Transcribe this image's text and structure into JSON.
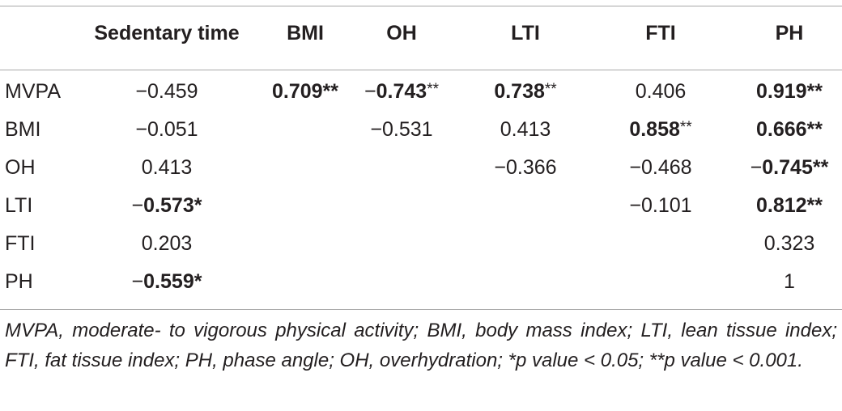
{
  "table": {
    "headers": [
      "",
      "Sedentary time",
      "BMI",
      "OH",
      "LTI",
      "FTI",
      "PH"
    ],
    "rows": [
      {
        "label": "MVPA",
        "cells": [
          {
            "col": 1,
            "sign": "−",
            "value": "0.459",
            "bold": false,
            "stars": ""
          },
          {
            "col": 2,
            "sign": "",
            "value": "0.709**",
            "bold": true,
            "stars": ""
          },
          {
            "col": 3,
            "sign": "−",
            "value": "0.743",
            "bold": true,
            "stars": "**"
          },
          {
            "col": 4,
            "sign": "",
            "value": "0.738",
            "bold": true,
            "stars": "**"
          },
          {
            "col": 5,
            "sign": "",
            "value": "0.406",
            "bold": false,
            "stars": ""
          },
          {
            "col": 6,
            "sign": "",
            "value": "0.919**",
            "bold": true,
            "stars": ""
          }
        ]
      },
      {
        "label": "BMI",
        "cells": [
          {
            "col": 1,
            "sign": "−",
            "value": "0.051",
            "bold": false,
            "stars": ""
          },
          {
            "col": 3,
            "sign": "−",
            "value": "0.531",
            "bold": false,
            "stars": ""
          },
          {
            "col": 4,
            "sign": "",
            "value": "0.413",
            "bold": false,
            "stars": ""
          },
          {
            "col": 5,
            "sign": "",
            "value": "0.858",
            "bold": true,
            "stars": "**"
          },
          {
            "col": 6,
            "sign": "",
            "value": "0.666**",
            "bold": true,
            "stars": ""
          }
        ]
      },
      {
        "label": "OH",
        "cells": [
          {
            "col": 1,
            "sign": "",
            "value": "0.413",
            "bold": false,
            "stars": ""
          },
          {
            "col": 4,
            "sign": "−",
            "value": "0.366",
            "bold": false,
            "stars": ""
          },
          {
            "col": 5,
            "sign": "−",
            "value": "0.468",
            "bold": false,
            "stars": ""
          },
          {
            "col": 6,
            "sign": "−",
            "value": "0.745**",
            "bold": true,
            "stars": ""
          }
        ]
      },
      {
        "label": "LTI",
        "cells": [
          {
            "col": 1,
            "sign": "−",
            "value": "0.573*",
            "bold": true,
            "stars": ""
          },
          {
            "col": 5,
            "sign": "−",
            "value": "0.101",
            "bold": false,
            "stars": ""
          },
          {
            "col": 6,
            "sign": "",
            "value": "0.812**",
            "bold": true,
            "stars": ""
          }
        ]
      },
      {
        "label": "FTI",
        "cells": [
          {
            "col": 1,
            "sign": "",
            "value": "0.203",
            "bold": false,
            "stars": ""
          },
          {
            "col": 6,
            "sign": "",
            "value": "0.323",
            "bold": false,
            "stars": ""
          }
        ]
      },
      {
        "label": "PH",
        "cells": [
          {
            "col": 1,
            "sign": "−",
            "value": "0.559*",
            "bold": true,
            "stars": ""
          },
          {
            "col": 6,
            "sign": "",
            "value": "1",
            "bold": false,
            "stars": ""
          }
        ]
      }
    ]
  },
  "footnote": "MVPA, moderate- to vigorous physical activity; BMI, body mass index; LTI, lean tissue index; FTI, fat tissue index; PH, phase angle; OH, overhydration; *p value < 0.05; **p value < 0.001."
}
